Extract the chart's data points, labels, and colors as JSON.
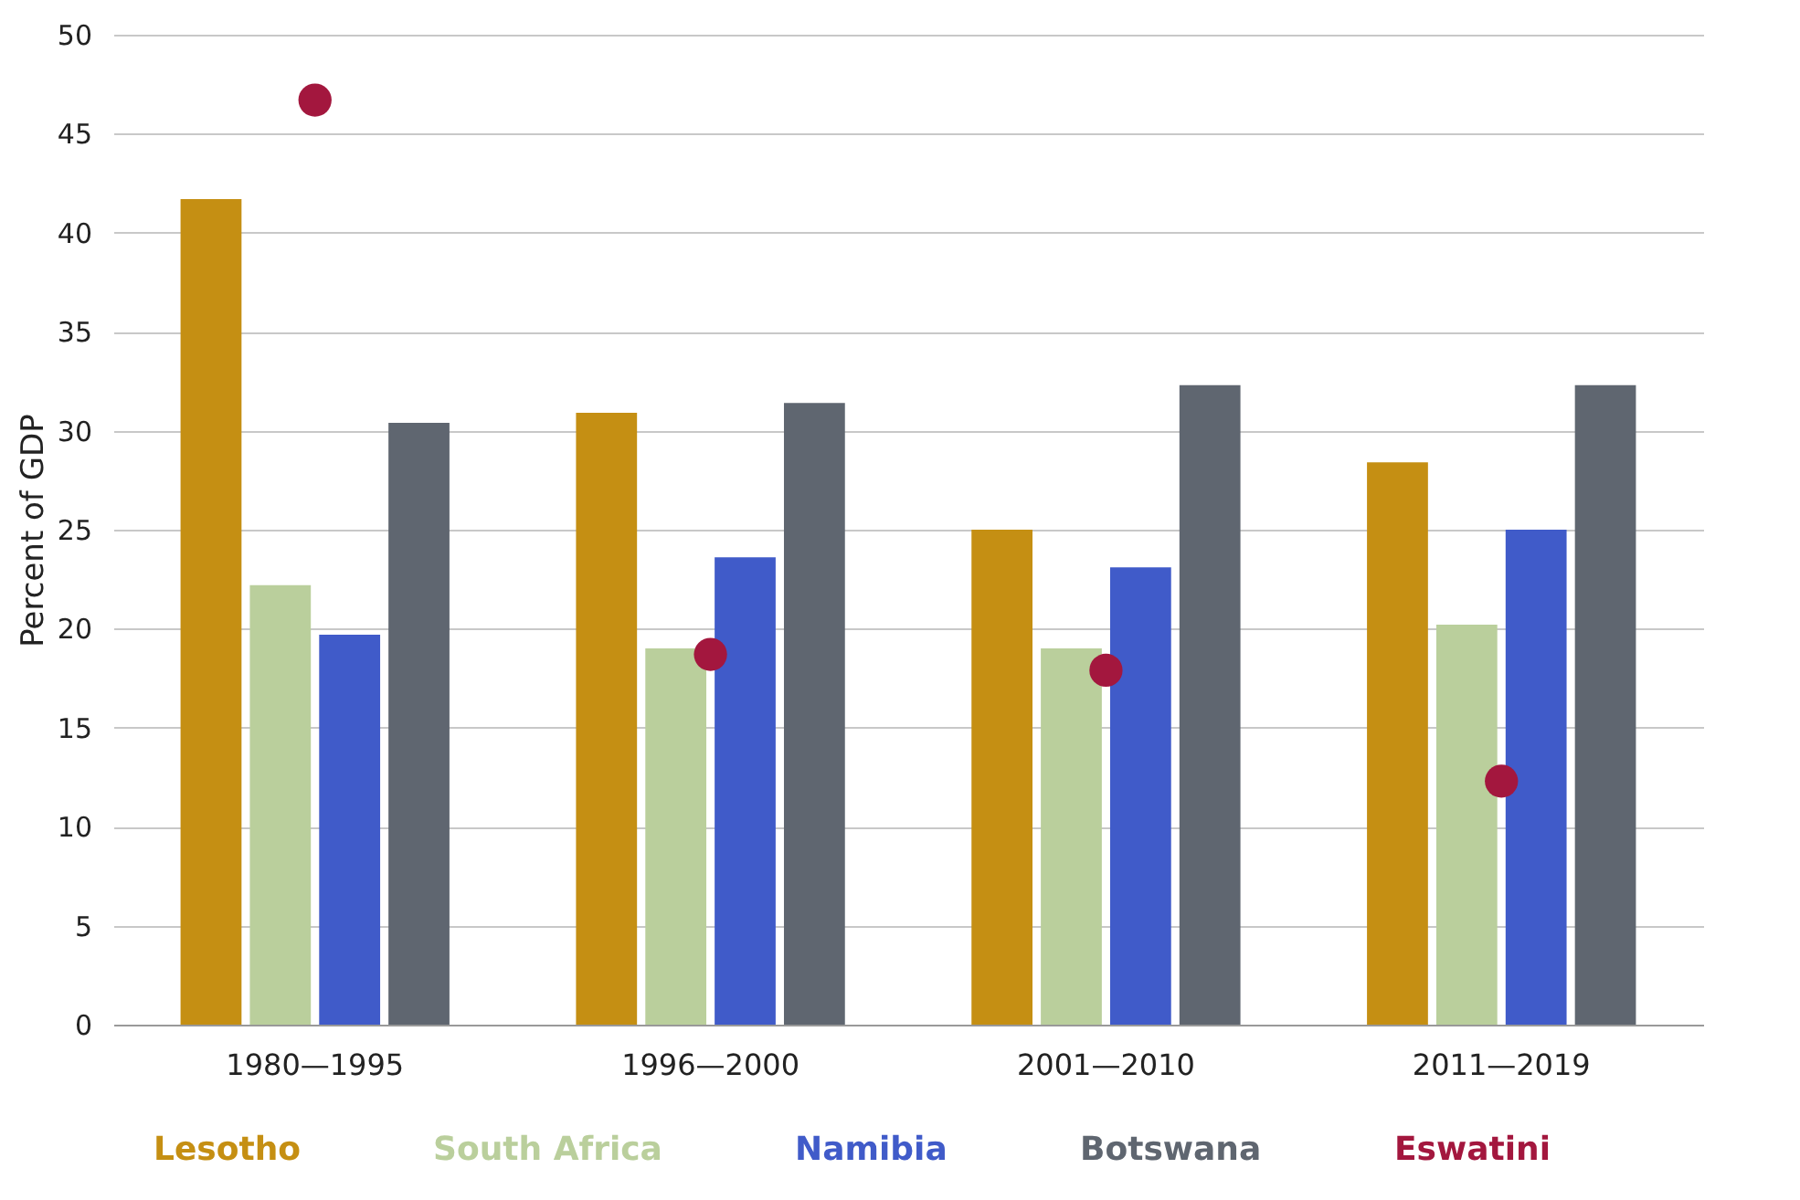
{
  "chart_data": {
    "type": "bar",
    "ylabel": "Percent of GDP",
    "categories": [
      "1980—1995",
      "1996—2000",
      "2001—2010",
      "2011—2019"
    ],
    "series": [
      {
        "name": "Lesotho",
        "color": "#c58f13",
        "values": [
          41.7,
          30.9,
          25.0,
          28.4
        ]
      },
      {
        "name": "South Africa",
        "color": "#bacf9c",
        "values": [
          22.2,
          19.0,
          19.0,
          20.2
        ]
      },
      {
        "name": "Namibia",
        "color": "#405bc9",
        "values": [
          19.7,
          23.6,
          23.1,
          25.0
        ]
      },
      {
        "name": "Botswana",
        "color": "#5f6670",
        "values": [
          30.4,
          31.4,
          32.3,
          32.3
        ]
      },
      {
        "name": "Eswatini",
        "type": "scatter",
        "color": "#a3173e",
        "values": [
          46.7,
          18.7,
          17.9,
          12.3
        ]
      }
    ],
    "ylim": [
      0,
      50
    ],
    "yticks": [
      0,
      5,
      10,
      15,
      20,
      25,
      30,
      35,
      40,
      45,
      50
    ],
    "grid": "y",
    "legend": "bottom",
    "marker": "circle"
  }
}
